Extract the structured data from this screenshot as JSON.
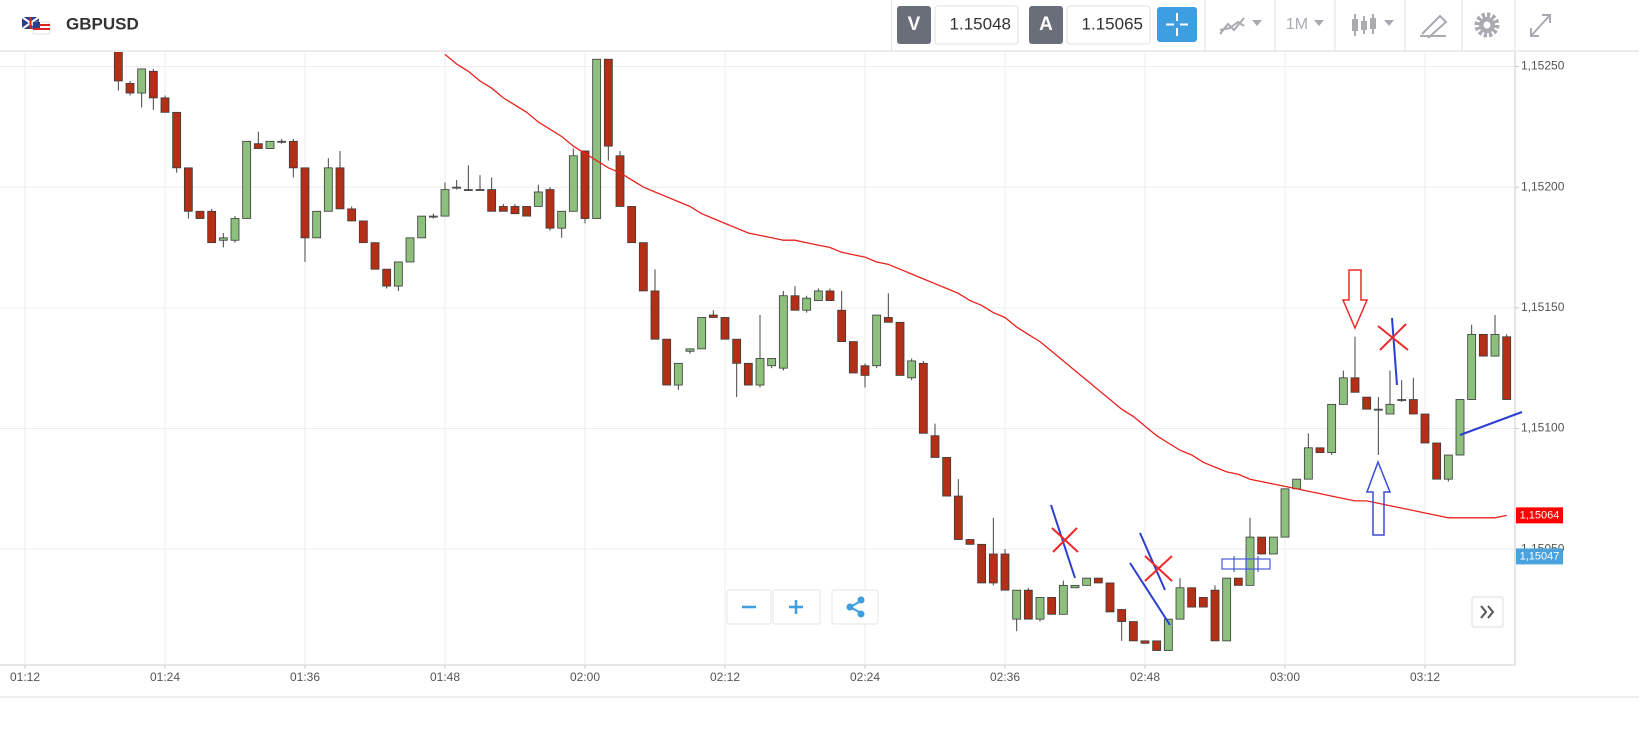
{
  "toolbar": {
    "bid_label": "V",
    "bid": 1.15048,
    "ask_label": "A",
    "ask": 1.15065,
    "timeframe": "1M"
  },
  "chart_data": {
    "type": "candlestick",
    "title": "GBPUSD",
    "categories": [
      "01:12",
      null,
      null,
      null,
      null,
      null,
      null,
      null,
      null,
      null,
      null,
      null,
      "01:24",
      null,
      null,
      null,
      null,
      null,
      null,
      null,
      null,
      null,
      null,
      null,
      "01:36",
      null,
      null,
      null,
      null,
      null,
      null,
      null,
      null,
      null,
      null,
      null,
      "01:48",
      null,
      null,
      null,
      null,
      null,
      null,
      null,
      null,
      null,
      null,
      null,
      "02:00",
      null,
      null,
      null,
      null,
      null,
      null,
      null,
      null,
      null,
      null,
      null,
      "02:12",
      null,
      null,
      null,
      null,
      null,
      null,
      null,
      null,
      null,
      null,
      null,
      "02:24",
      null,
      null,
      null,
      null,
      null,
      null,
      null,
      null,
      null,
      null,
      null,
      "02:36",
      null,
      null,
      null,
      null,
      null,
      null,
      null,
      null,
      null,
      null,
      null,
      "02:48",
      null,
      null,
      null,
      null,
      null,
      null,
      null,
      null,
      null,
      null,
      null,
      "03:00",
      null,
      null,
      null,
      null,
      null,
      null,
      null,
      null,
      null,
      null,
      null,
      "03:12",
      null,
      null,
      null,
      null,
      null,
      null,
      null
    ],
    "open": [
      null,
      null,
      null,
      null,
      null,
      null,
      null,
      null,
      1.15257,
      1.15243,
      1.15239,
      1.15248,
      1.15237,
      1.15231,
      1.15208,
      1.1519,
      1.1519,
      1.15178,
      1.15178,
      1.15187,
      1.15218,
      1.15216,
      1.15219,
      1.15219,
      1.15208,
      1.15179,
      1.1519,
      1.15208,
      1.15191,
      1.15186,
      1.15177,
      1.15166,
      1.15159,
      1.15169,
      1.15179,
      1.15188,
      1.15188,
      1.152,
      1.15199,
      1.15199,
      1.15199,
      1.15192,
      1.15192,
      1.15192,
      1.15192,
      1.15199,
      1.15183,
      1.1519,
      1.15215,
      1.15187,
      1.15253,
      1.15213,
      1.15192,
      1.15177,
      1.15157,
      1.15137,
      1.15118,
      1.15132,
      1.15133,
      1.15147,
      1.15146,
      1.15137,
      1.15127,
      1.15118,
      1.15126,
      1.15125,
      1.15155,
      1.15149,
      1.15153,
      1.15157,
      1.15149,
      1.15136,
      1.15126,
      1.15126,
      1.15146,
      1.15144,
      1.15121,
      1.15127,
      1.15097,
      1.15088,
      1.15072,
      1.15054,
      1.15052,
      1.15048,
      1.15048,
      1.15021,
      1.15033,
      1.15021,
      1.1503,
      1.15023,
      1.15034,
      1.15035,
      1.15038,
      1.15036,
      1.15025,
      1.1502,
      1.15012,
      1.15012,
      1.15008,
      1.15021,
      1.15034,
      1.1503,
      1.15033,
      1.15012,
      1.15038,
      1.15035,
      1.15055,
      1.15048,
      1.15055,
      1.15075,
      1.15079,
      1.15092,
      1.1509,
      1.1511,
      1.15121,
      1.15113,
      1.15108,
      1.15106,
      1.15112,
      1.15112,
      1.15106,
      1.15094,
      1.15079,
      1.15089,
      1.15112,
      1.15139,
      1.1513,
      1.15138
    ],
    "high": [
      null,
      null,
      null,
      null,
      null,
      null,
      null,
      null,
      1.15258,
      1.15244,
      1.15249,
      1.15249,
      1.15238,
      1.15231,
      1.15208,
      1.1519,
      1.15191,
      1.15181,
      1.15188,
      1.15219,
      1.15223,
      1.15219,
      1.1522,
      1.1522,
      1.15208,
      1.1519,
      1.15212,
      1.15215,
      1.15192,
      1.15186,
      1.15177,
      1.15166,
      1.15169,
      1.15179,
      1.15188,
      1.15189,
      1.15202,
      1.15203,
      1.15209,
      1.15205,
      1.15204,
      1.15193,
      1.15193,
      1.15192,
      1.15201,
      1.152,
      1.1519,
      1.15216,
      1.15215,
      1.15253,
      1.15253,
      1.15215,
      1.15192,
      1.15177,
      1.15166,
      1.15137,
      1.15127,
      1.15133,
      1.15146,
      1.15149,
      1.15146,
      1.15137,
      1.15127,
      1.15147,
      1.15129,
      1.15157,
      1.15159,
      1.15155,
      1.15158,
      1.15158,
      1.15157,
      1.15136,
      1.15127,
      1.15147,
      1.15156,
      1.15144,
      1.15129,
      1.15128,
      1.15102,
      1.15088,
      1.15079,
      1.15054,
      1.15052,
      1.15063,
      1.1505,
      1.15033,
      1.15034,
      1.1503,
      1.1503,
      1.15037,
      1.15035,
      1.15038,
      1.15038,
      1.15036,
      1.15025,
      1.1502,
      1.15012,
      1.15012,
      1.15021,
      1.15038,
      1.15034,
      1.1503,
      1.15035,
      1.15038,
      1.15038,
      1.15063,
      1.15055,
      1.15055,
      1.15075,
      1.15079,
      1.15098,
      1.15092,
      1.1511,
      1.15124,
      1.15138,
      1.15113,
      1.15113,
      1.15124,
      1.1512,
      1.15121,
      1.15106,
      1.15094,
      1.15089,
      1.15112,
      1.15143,
      1.15139,
      1.15147,
      1.15139
    ],
    "low": [
      null,
      null,
      null,
      null,
      null,
      null,
      null,
      null,
      1.1524,
      1.15238,
      1.15233,
      1.15232,
      1.15231,
      1.15206,
      1.15187,
      1.15187,
      1.15177,
      1.15175,
      1.15177,
      1.15187,
      1.15216,
      1.15216,
      1.15218,
      1.15204,
      1.15169,
      1.15179,
      1.1519,
      1.15191,
      1.15186,
      1.15177,
      1.15166,
      1.15158,
      1.15157,
      1.15169,
      1.15179,
      1.15187,
      1.15188,
      1.15199,
      1.15199,
      1.15199,
      1.1519,
      1.1519,
      1.15189,
      1.15188,
      1.15192,
      1.15182,
      1.15179,
      1.1519,
      1.15185,
      1.15187,
      1.15211,
      1.15192,
      1.15177,
      1.15157,
      1.15137,
      1.15118,
      1.15116,
      1.15131,
      1.15133,
      1.15146,
      1.15137,
      1.15113,
      1.15118,
      1.15117,
      1.15125,
      1.15124,
      1.15149,
      1.15148,
      1.15153,
      1.15153,
      1.15136,
      1.15123,
      1.15117,
      1.15125,
      1.15144,
      1.15122,
      1.1512,
      1.15098,
      1.15088,
      1.15072,
      1.15054,
      1.15052,
      1.15036,
      1.15035,
      1.15033,
      1.15016,
      1.15021,
      1.1502,
      1.15023,
      1.15023,
      1.15034,
      1.15035,
      1.15036,
      1.15024,
      1.15012,
      1.15012,
      1.15011,
      1.15008,
      1.15008,
      1.15021,
      1.15026,
      1.15026,
      1.15012,
      1.15012,
      1.15035,
      1.15035,
      1.15048,
      1.15048,
      1.15055,
      1.15075,
      1.15079,
      1.1509,
      1.15089,
      1.1511,
      1.15115,
      1.15108,
      1.15089,
      1.15106,
      1.15111,
      1.15106,
      1.15094,
      1.15079,
      1.15078,
      1.15089,
      1.15112,
      1.1513,
      1.1513,
      1.15112
    ],
    "close": [
      null,
      null,
      null,
      null,
      null,
      null,
      null,
      null,
      1.15244,
      1.15239,
      1.15249,
      1.15237,
      1.15231,
      1.15208,
      1.1519,
      1.15187,
      1.15177,
      1.15179,
      1.15187,
      1.15219,
      1.15216,
      1.15219,
      1.15219,
      1.15208,
      1.15179,
      1.1519,
      1.15208,
      1.15191,
      1.15186,
      1.15177,
      1.15166,
      1.15159,
      1.15169,
      1.15179,
      1.15188,
      1.15188,
      1.15199,
      1.152,
      1.15199,
      1.15199,
      1.1519,
      1.1519,
      1.15189,
      1.15188,
      1.15198,
      1.15183,
      1.1519,
      1.15213,
      1.15187,
      1.15253,
      1.15217,
      1.15192,
      1.15177,
      1.15157,
      1.15137,
      1.15118,
      1.15127,
      1.15133,
      1.15146,
      1.15146,
      1.15137,
      1.15127,
      1.15118,
      1.15129,
      1.15129,
      1.15155,
      1.15149,
      1.15154,
      1.15157,
      1.15153,
      1.15136,
      1.15123,
      1.15122,
      1.15147,
      1.15144,
      1.15122,
      1.15128,
      1.15098,
      1.15088,
      1.15072,
      1.15054,
      1.15052,
      1.15036,
      1.15036,
      1.15033,
      1.15033,
      1.15021,
      1.1503,
      1.15023,
      1.15035,
      1.15035,
      1.15038,
      1.15036,
      1.15024,
      1.1502,
      1.15012,
      1.15011,
      1.15008,
      1.15021,
      1.15034,
      1.15026,
      1.15026,
      1.15012,
      1.15038,
      1.15035,
      1.15055,
      1.15048,
      1.15055,
      1.15075,
      1.15079,
      1.15092,
      1.1509,
      1.1511,
      1.15121,
      1.15115,
      1.15108,
      1.15108,
      1.1511,
      1.15112,
      1.15106,
      1.15094,
      1.15079,
      1.15089,
      1.15112,
      1.15139,
      1.1513,
      1.15139,
      1.15112
    ],
    "up_color": "#8cc07c",
    "down_color": "#b33016",
    "moving_average": {
      "color": "#e8221c",
      "values": [
        null,
        null,
        null,
        null,
        null,
        null,
        null,
        null,
        null,
        null,
        null,
        null,
        null,
        null,
        null,
        null,
        null,
        null,
        null,
        null,
        null,
        null,
        null,
        null,
        null,
        null,
        null,
        null,
        null,
        null,
        null,
        null,
        null,
        null,
        null,
        null,
        1.15255,
        1.15251,
        1.15248,
        1.15244,
        1.15241,
        1.15237,
        1.15234,
        1.15231,
        1.15227,
        1.15224,
        1.15221,
        1.15217,
        1.15214,
        1.15211,
        1.15208,
        1.15206,
        1.15203,
        1.152,
        1.15198,
        1.15196,
        1.15194,
        1.15192,
        1.15189,
        1.15187,
        1.15185,
        1.15183,
        1.15181,
        1.1518,
        1.15179,
        1.15178,
        1.15178,
        1.15177,
        1.15176,
        1.15175,
        1.15173,
        1.15172,
        1.15171,
        1.15169,
        1.15168,
        1.15166,
        1.15164,
        1.15162,
        1.1516,
        1.15158,
        1.15156,
        1.15153,
        1.15151,
        1.15148,
        1.15146,
        1.15142,
        1.15139,
        1.15136,
        1.15132,
        1.15128,
        1.15124,
        1.1512,
        1.15116,
        1.15112,
        1.15108,
        1.15105,
        1.15101,
        1.15097,
        1.15094,
        1.15091,
        1.15089,
        1.15086,
        1.15084,
        1.15082,
        1.15081,
        1.15079,
        1.15078,
        1.15077,
        1.15076,
        1.15075,
        1.15074,
        1.15073,
        1.15072,
        1.15071,
        1.1507,
        1.1507,
        1.15069,
        1.15068,
        1.15067,
        1.15066,
        1.15065,
        1.15064,
        1.15063,
        1.15063,
        1.15063,
        1.15063,
        1.15063,
        1.15064
      ]
    },
    "ylim": [
      1.15002,
      1.15256
    ],
    "yticks": [
      {
        "value": 1.1525,
        "label": "1,15250"
      },
      {
        "value": 1.152,
        "label": "1,15200"
      },
      {
        "value": 1.1515,
        "label": "1,15150"
      },
      {
        "value": 1.151,
        "label": "1,15100"
      },
      {
        "value": 1.1505,
        "label": "1,15050"
      }
    ],
    "grid": true,
    "price_labels": [
      {
        "value": 1.15064,
        "label": "1,15064",
        "color": "#ff0000"
      },
      {
        "value": 1.15047,
        "label": "1,15047",
        "color": "#4aa3df"
      }
    ]
  }
}
